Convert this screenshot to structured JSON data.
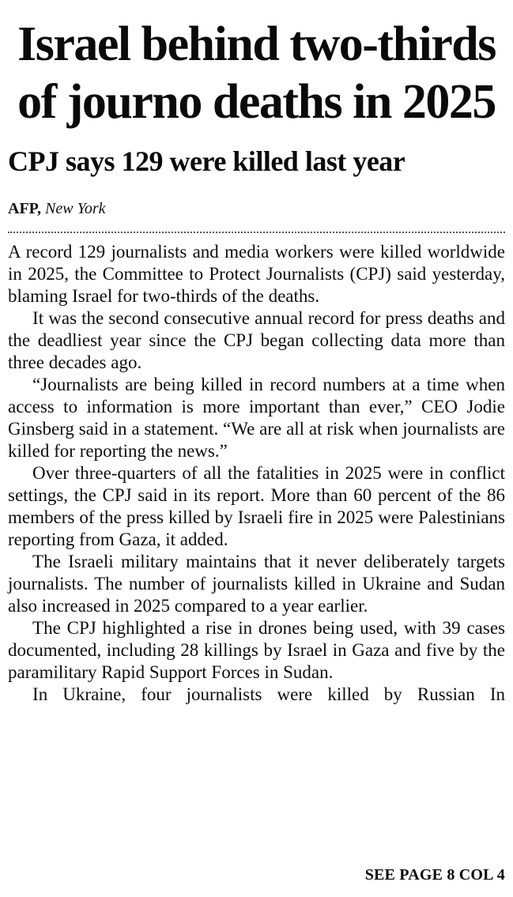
{
  "article": {
    "headline": "Israel behind two-thirds of journo deaths in 2025",
    "subheadline": "CPJ says 129 were killed last year",
    "byline": {
      "agency": "AFP,",
      "location": "New York"
    },
    "paragraphs": [
      "A record 129 journalists and media workers were killed worldwide in 2025, the Committee to Protect Journalists (CPJ) said yesterday, blaming Israel for two-thirds of the deaths.",
      "It was the second consecutive annual record for press deaths and the deadliest year since the CPJ began collecting data more than three decades ago.",
      "“Journalists are being killed in record numbers at a time when access to information is more important than ever,” CEO Jodie Ginsberg said in a statement. “We are all at risk when journalists are killed for reporting the news.”",
      "Over three-quarters of all the fatalities in 2025 were in conflict settings, the CPJ said in its report. More than 60 percent of the 86 members of the press killed by Israeli fire in 2025 were Palestinians reporting from Gaza, it added.",
      "The Israeli military maintains that it never deliberately targets journalists. The number of journalists killed in Ukraine and Sudan also increased in 2025 compared to a year earlier.",
      "The CPJ highlighted a rise in drones being used, with 39 cases documented, including 28 killings by Israel in Gaza and five by the paramilitary Rapid Support Forces in Sudan.",
      "In Ukraine, four journalists were killed by Russian In"
    ],
    "continuation": "SEE PAGE 8 COL 4"
  }
}
